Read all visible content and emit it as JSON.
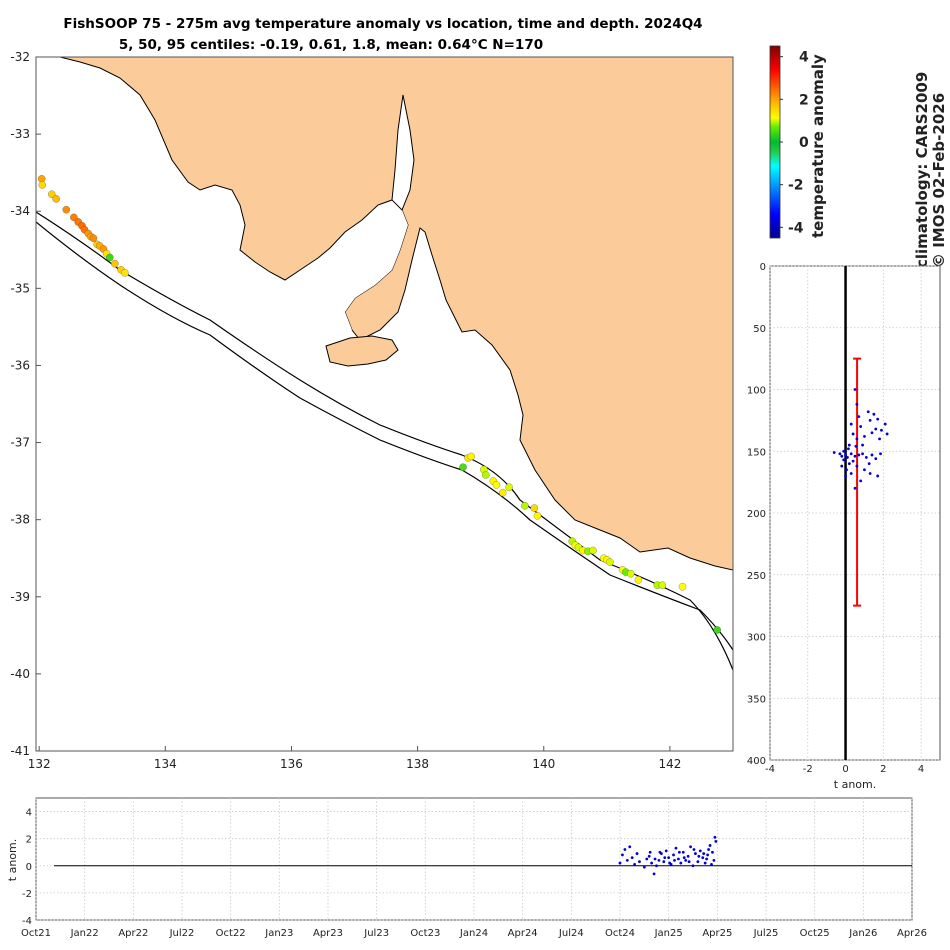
{
  "title_line1": "FishSOOP 75 - 275m avg temperature anomaly vs location, time and depth. 2024Q4",
  "title_line2": "5, 50, 95 centiles: -0.19, 0.61, 1.8, mean: 0.64°C N=170",
  "colors": {
    "land": "#fbcc9a",
    "ocean": "#ffffff",
    "profile_points": "#0000dd",
    "centile_bar": "#ff0000",
    "zero_line": "#000000"
  },
  "chart_data": [
    {
      "type": "scatter",
      "name": "map",
      "x_ticks": [
        132,
        134,
        136,
        138,
        140,
        142
      ],
      "y_ticks": [
        -32,
        -33,
        -34,
        -35,
        -36,
        -37,
        -38,
        -39,
        -40,
        -41
      ],
      "xlim": [
        131.95,
        143.0
      ],
      "ylim": [
        -41.0,
        -32.0
      ],
      "points": [
        [
          132.04,
          -33.58,
          2.0
        ],
        [
          132.05,
          -33.66,
          1.5
        ],
        [
          132.2,
          -33.78,
          1.6
        ],
        [
          132.27,
          -33.84,
          1.8
        ],
        [
          132.43,
          -33.98,
          2.2
        ],
        [
          132.55,
          -34.08,
          2.3
        ],
        [
          132.62,
          -34.14,
          2.4
        ],
        [
          132.68,
          -34.19,
          2.5
        ],
        [
          132.72,
          -34.24,
          2.4
        ],
        [
          132.78,
          -34.29,
          2.1
        ],
        [
          132.82,
          -34.33,
          2.0
        ],
        [
          132.86,
          -34.35,
          2.2
        ],
        [
          132.92,
          -34.43,
          1.6
        ],
        [
          132.96,
          -34.45,
          1.9
        ],
        [
          133.02,
          -34.49,
          2.1
        ],
        [
          133.07,
          -34.55,
          1.4
        ],
        [
          133.12,
          -34.6,
          0.4
        ],
        [
          133.2,
          -34.68,
          1.7
        ],
        [
          133.3,
          -34.76,
          1.6
        ],
        [
          133.36,
          -34.8,
          1.4
        ],
        [
          138.8,
          -37.2,
          1.4
        ],
        [
          138.72,
          -37.32,
          0.5
        ],
        [
          138.85,
          -37.18,
          1.2
        ],
        [
          139.05,
          -37.35,
          1.0
        ],
        [
          139.08,
          -37.42,
          0.9
        ],
        [
          139.2,
          -37.5,
          1.2
        ],
        [
          139.25,
          -37.55,
          1.1
        ],
        [
          139.45,
          -37.58,
          1.0
        ],
        [
          139.35,
          -37.65,
          1.3
        ],
        [
          139.7,
          -37.82,
          0.9
        ],
        [
          139.85,
          -37.85,
          1.5
        ],
        [
          139.9,
          -37.95,
          1.2
        ],
        [
          140.45,
          -38.28,
          0.9
        ],
        [
          140.5,
          -38.33,
          1.1
        ],
        [
          140.55,
          -38.36,
          1.0
        ],
        [
          140.62,
          -38.4,
          1.2
        ],
        [
          140.7,
          -38.41,
          0.8
        ],
        [
          140.78,
          -38.4,
          1.0
        ],
        [
          140.95,
          -38.5,
          1.1
        ],
        [
          141.0,
          -38.52,
          1.2
        ],
        [
          141.05,
          -38.55,
          1.0
        ],
        [
          141.25,
          -38.65,
          1.1
        ],
        [
          141.3,
          -38.68,
          0.7
        ],
        [
          141.38,
          -38.7,
          1.0
        ],
        [
          141.5,
          -38.78,
          1.2
        ],
        [
          141.8,
          -38.85,
          0.9
        ],
        [
          141.88,
          -38.85,
          1.0
        ],
        [
          142.2,
          -38.87,
          1.1
        ],
        [
          142.75,
          -39.43,
          0.4
        ]
      ]
    },
    {
      "type": "colorbar",
      "name": "colorbar",
      "label": "temperature anomaly",
      "ticks": [
        4,
        2,
        0,
        -2,
        -4
      ],
      "range": [
        -4.5,
        4.5
      ]
    },
    {
      "type": "scatter",
      "name": "depth_profile",
      "xlabel": "t anom.",
      "x_ticks": [
        -4,
        -2,
        0,
        2,
        4
      ],
      "y_ticks": [
        0,
        50,
        100,
        150,
        200,
        250,
        300,
        350,
        400
      ],
      "xlim": [
        -4,
        5
      ],
      "ylim": [
        0,
        400
      ],
      "centile_bar": {
        "x": 0.61,
        "depth_top": 75,
        "depth_bottom": 275
      },
      "points": [
        [
          0.5,
          100
        ],
        [
          0.6,
          112
        ],
        [
          0.7,
          122
        ],
        [
          1.2,
          118
        ],
        [
          1.5,
          120
        ],
        [
          1.3,
          125
        ],
        [
          1.7,
          124
        ],
        [
          2.1,
          128
        ],
        [
          2.2,
          136
        ],
        [
          1.9,
          133
        ],
        [
          1.6,
          132
        ],
        [
          0.3,
          128
        ],
        [
          0.4,
          136
        ],
        [
          0.6,
          140
        ],
        [
          0.8,
          130
        ],
        [
          1.0,
          138
        ],
        [
          1.4,
          135
        ],
        [
          1.8,
          140
        ],
        [
          0.9,
          145
        ],
        [
          0.2,
          145
        ],
        [
          -0.1,
          150
        ],
        [
          -0.3,
          152
        ],
        [
          -0.6,
          151
        ],
        [
          -0.2,
          154
        ],
        [
          0.0,
          153
        ],
        [
          0.1,
          155
        ],
        [
          0.3,
          152
        ],
        [
          0.5,
          154
        ],
        [
          0.7,
          153
        ],
        [
          0.9,
          152
        ],
        [
          1.1,
          155
        ],
        [
          1.4,
          153
        ],
        [
          1.6,
          156
        ],
        [
          0.4,
          158
        ],
        [
          -0.1,
          157
        ],
        [
          0.2,
          160
        ],
        [
          0.6,
          162
        ],
        [
          1.0,
          165
        ],
        [
          1.3,
          168
        ],
        [
          1.7,
          170
        ],
        [
          0.3,
          168
        ],
        [
          0.0,
          170
        ],
        [
          0.8,
          174
        ],
        [
          0.5,
          180
        ],
        [
          -0.2,
          162
        ],
        [
          0.15,
          148
        ],
        [
          0.55,
          146
        ],
        [
          1.25,
          160
        ],
        [
          1.85,
          152
        ],
        [
          0.05,
          165
        ]
      ]
    },
    {
      "type": "scatter",
      "name": "time_series",
      "ylabel": "t anom.",
      "x_tick_labels": [
        "Oct21",
        "Jan22",
        "Apr22",
        "Jul22",
        "Oct22",
        "Jan23",
        "Apr23",
        "Jul23",
        "Oct23",
        "Jan24",
        "Apr24",
        "Jul24",
        "Oct24",
        "Jan25",
        "Apr25",
        "Jul25",
        "Oct25",
        "Jan26",
        "Apr26"
      ],
      "y_ticks": [
        4,
        2,
        0,
        -2,
        -4
      ],
      "ylim": [
        -4,
        5
      ],
      "points": [
        [
          12.0,
          0.2
        ],
        [
          12.05,
          0.8
        ],
        [
          12.1,
          1.2
        ],
        [
          12.15,
          0.4
        ],
        [
          12.2,
          1.4
        ],
        [
          12.25,
          0.6
        ],
        [
          12.3,
          0.1
        ],
        [
          12.35,
          0.9
        ],
        [
          12.4,
          0.3
        ],
        [
          12.5,
          -0.1
        ],
        [
          12.55,
          0.5
        ],
        [
          12.6,
          0.7
        ],
        [
          12.65,
          0.2
        ],
        [
          12.7,
          -0.6
        ],
        [
          12.75,
          0.0
        ],
        [
          12.8,
          0.4
        ],
        [
          12.85,
          0.9
        ],
        [
          12.9,
          0.3
        ],
        [
          12.95,
          1.1
        ],
        [
          13.0,
          0.6
        ],
        [
          13.05,
          0.1
        ],
        [
          13.1,
          0.8
        ],
        [
          13.15,
          1.3
        ],
        [
          13.2,
          0.5
        ],
        [
          13.25,
          0.2
        ],
        [
          13.3,
          1.0
        ],
        [
          13.35,
          0.4
        ],
        [
          13.4,
          0.7
        ],
        [
          13.45,
          1.4
        ],
        [
          13.5,
          0.0
        ],
        [
          13.55,
          0.9
        ],
        [
          13.6,
          0.3
        ],
        [
          13.65,
          1.1
        ],
        [
          13.7,
          0.6
        ],
        [
          13.75,
          0.2
        ],
        [
          13.8,
          0.8
        ],
        [
          13.85,
          1.5
        ],
        [
          13.9,
          1.0
        ],
        [
          13.95,
          2.1
        ],
        [
          13.97,
          1.8
        ],
        [
          13.93,
          0.4
        ],
        [
          13.88,
          0.1
        ],
        [
          13.82,
          1.2
        ],
        [
          13.78,
          0.5
        ],
        [
          13.72,
          0.9
        ],
        [
          13.62,
          0.7
        ],
        [
          13.52,
          1.2
        ],
        [
          13.42,
          0.3
        ],
        [
          13.32,
          0.6
        ],
        [
          13.22,
          1.0
        ],
        [
          13.12,
          0.4
        ],
        [
          13.02,
          0.2
        ],
        [
          12.92,
          0.6
        ],
        [
          12.82,
          1.0
        ],
        [
          12.72,
          0.5
        ],
        [
          12.62,
          1.0
        ]
      ]
    }
  ],
  "right_annotations": {
    "climatology": "climatology: CARS2009",
    "copyright": "© IMOS 02-Feb-2026"
  }
}
